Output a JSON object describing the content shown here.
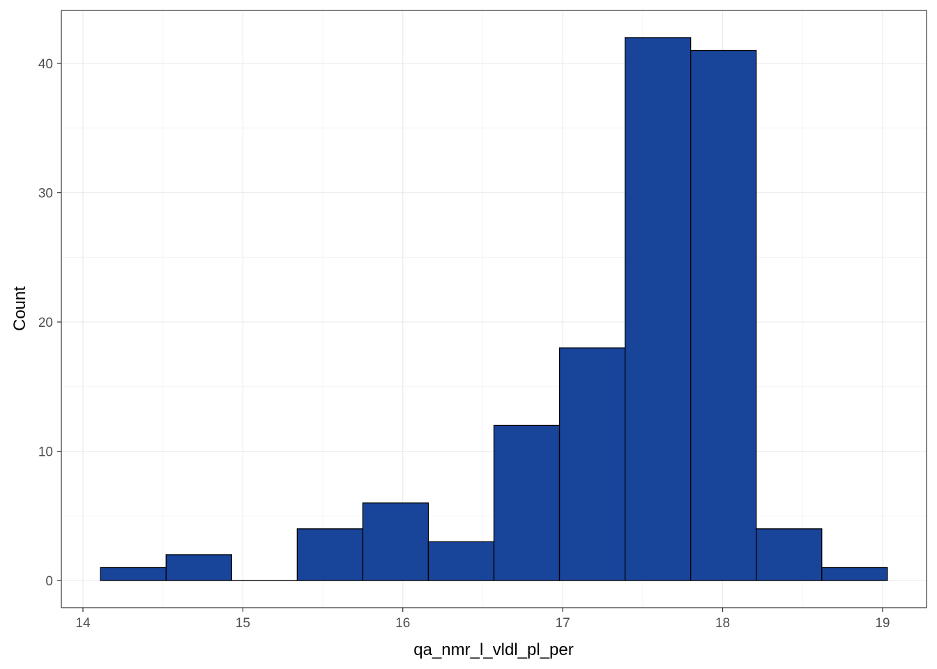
{
  "chart_data": {
    "type": "bar",
    "xlabel": "qa_nmr_l_vldl_pl_per",
    "ylabel": "Count",
    "xlim": [
      14,
      19
    ],
    "ylim": [
      0,
      43
    ],
    "x_ticks": [
      14,
      15,
      16,
      17,
      18,
      19
    ],
    "y_ticks": [
      0,
      10,
      20,
      30,
      40
    ],
    "grid": true,
    "bar_fill": "#18449A",
    "bar_edge": "#000000",
    "bins": [
      {
        "x0": 14.11,
        "x1": 14.52,
        "count": 1
      },
      {
        "x0": 14.52,
        "x1": 14.93,
        "count": 2
      },
      {
        "x0": 14.93,
        "x1": 15.34,
        "count": 0
      },
      {
        "x0": 15.34,
        "x1": 15.75,
        "count": 4
      },
      {
        "x0": 15.75,
        "x1": 16.16,
        "count": 6
      },
      {
        "x0": 16.16,
        "x1": 16.57,
        "count": 3
      },
      {
        "x0": 16.57,
        "x1": 16.98,
        "count": 12
      },
      {
        "x0": 16.98,
        "x1": 17.39,
        "count": 18
      },
      {
        "x0": 17.39,
        "x1": 17.8,
        "count": 42
      },
      {
        "x0": 17.8,
        "x1": 18.21,
        "count": 41
      },
      {
        "x0": 18.21,
        "x1": 18.62,
        "count": 4
      },
      {
        "x0": 18.62,
        "x1": 19.03,
        "count": 1
      }
    ]
  }
}
